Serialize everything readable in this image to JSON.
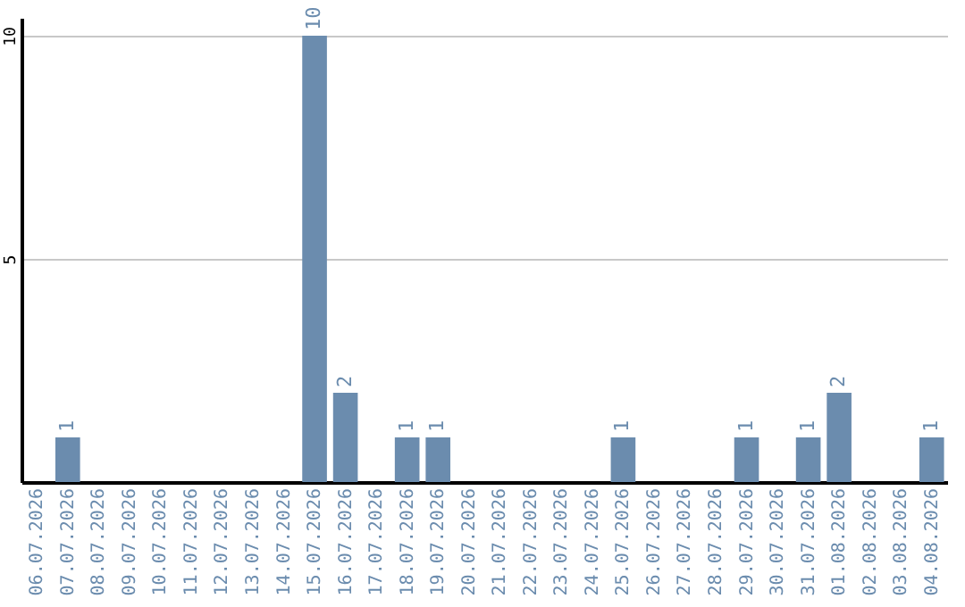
{
  "chart_data": {
    "type": "bar",
    "categories": [
      "06.07.2026",
      "07.07.2026",
      "08.07.2026",
      "09.07.2026",
      "10.07.2026",
      "11.07.2026",
      "12.07.2026",
      "13.07.2026",
      "14.07.2026",
      "15.07.2026",
      "16.07.2026",
      "17.07.2026",
      "18.07.2026",
      "19.07.2026",
      "20.07.2026",
      "21.07.2026",
      "22.07.2026",
      "23.07.2026",
      "24.07.2026",
      "25.07.2026",
      "26.07.2026",
      "27.07.2026",
      "28.07.2026",
      "29.07.2026",
      "30.07.2026",
      "31.07.2026",
      "01.08.2026",
      "02.08.2026",
      "03.08.2026",
      "04.08.2026"
    ],
    "values": [
      0,
      1,
      0,
      0,
      0,
      0,
      0,
      0,
      0,
      10,
      2,
      0,
      1,
      1,
      0,
      0,
      0,
      0,
      0,
      1,
      0,
      0,
      0,
      1,
      0,
      1,
      2,
      0,
      0,
      1
    ],
    "value_labels": [
      null,
      "1",
      null,
      null,
      null,
      null,
      null,
      null,
      null,
      "10",
      "2",
      null,
      "1",
      "1",
      null,
      null,
      null,
      null,
      null,
      "1",
      null,
      null,
      null,
      "1",
      null,
      "1",
      "2",
      null,
      null,
      "1"
    ],
    "color": "#6b8cae",
    "ylim": [
      0,
      10.4
    ],
    "yticks": [
      5,
      10
    ],
    "grid": "y"
  }
}
